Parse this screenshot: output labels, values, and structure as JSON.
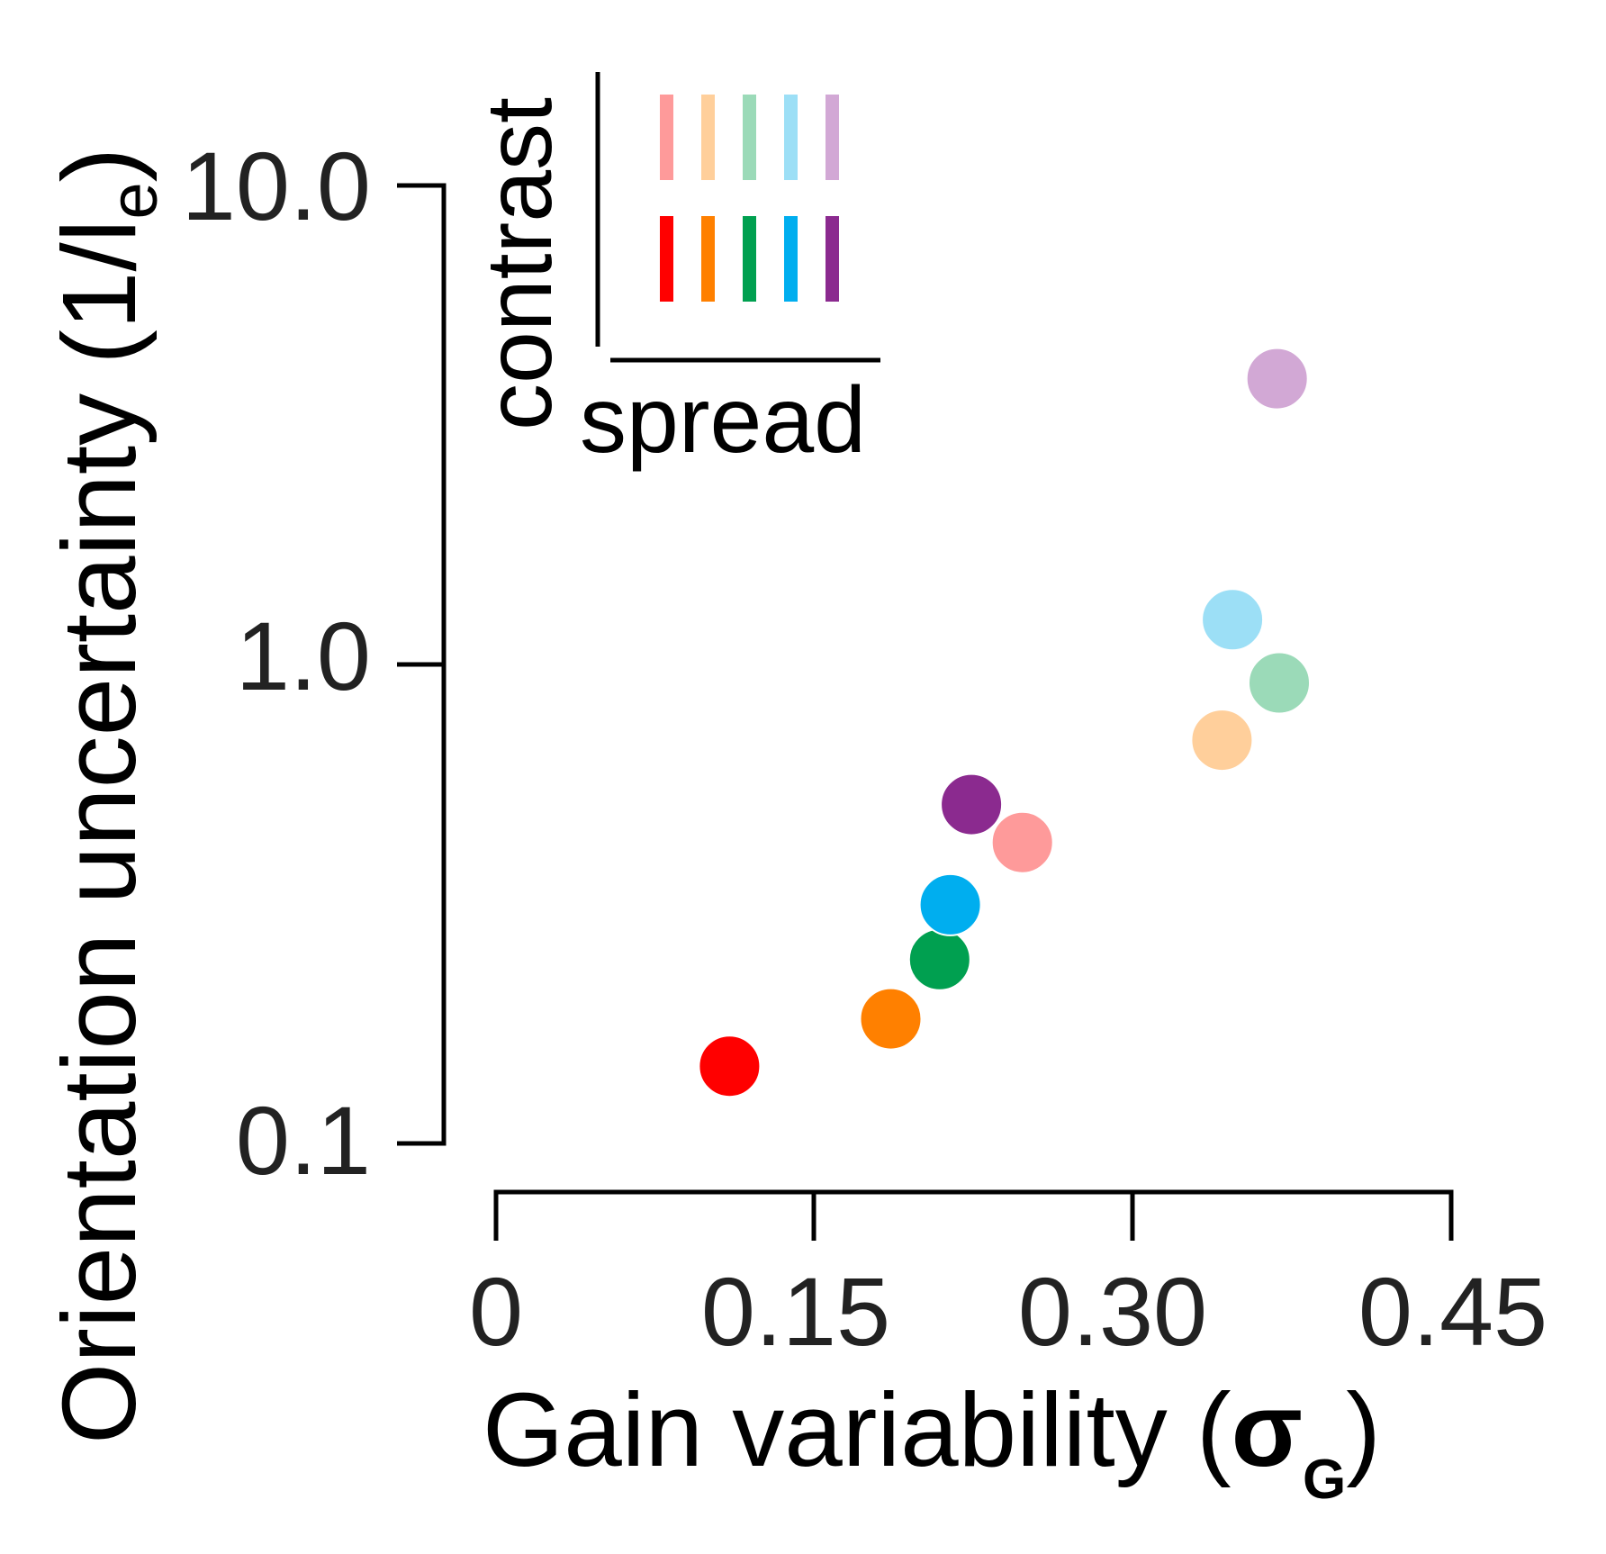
{
  "chart_data": {
    "type": "scatter",
    "x_axis": {
      "label_main": "Gain variability (",
      "label_symbol": "σ",
      "label_subscript": "G",
      "label_close": ")",
      "range": [
        0,
        0.45
      ],
      "ticks": [
        0,
        0.15,
        0.3,
        0.45
      ],
      "tick_labels": [
        "0",
        "0.15",
        "0.30",
        "0.45"
      ]
    },
    "y_axis": {
      "label_main": "Orientation uncertainty (1/l",
      "label_subscript": "e",
      "label_close": ")",
      "scale": "log",
      "range": [
        0.1,
        10
      ],
      "ticks": [
        0.1,
        1,
        10
      ],
      "tick_labels": [
        "0.1",
        "1.0",
        "10.0"
      ]
    },
    "points": [
      {
        "x": 0.11,
        "y": 0.145,
        "color": "#ff0000"
      },
      {
        "x": 0.186,
        "y": 0.182,
        "color": "#ff8000"
      },
      {
        "x": 0.209,
        "y": 0.242,
        "color": "#00a050"
      },
      {
        "x": 0.214,
        "y": 0.315,
        "color": "#00aeef"
      },
      {
        "x": 0.224,
        "y": 0.51,
        "color": "#8b2a8f"
      },
      {
        "x": 0.248,
        "y": 0.425,
        "color": "#fe9a9a"
      },
      {
        "x": 0.342,
        "y": 0.695,
        "color": "#ffcf9b"
      },
      {
        "x": 0.347,
        "y": 1.24,
        "color": "#9cdff6"
      },
      {
        "x": 0.369,
        "y": 0.915,
        "color": "#9bdab8"
      },
      {
        "x": 0.368,
        "y": 3.95,
        "color": "#d2a8d5"
      }
    ],
    "legend": {
      "y_label": "contrast",
      "x_label": "spread",
      "rows": [
        [
          "#fe9a9a",
          "#ffcf9b",
          "#9bdab8",
          "#9cdff6",
          "#d2a8d5"
        ],
        [
          "#ff0000",
          "#ff8000",
          "#00a050",
          "#00aeef",
          "#8b2a8f"
        ]
      ]
    }
  }
}
